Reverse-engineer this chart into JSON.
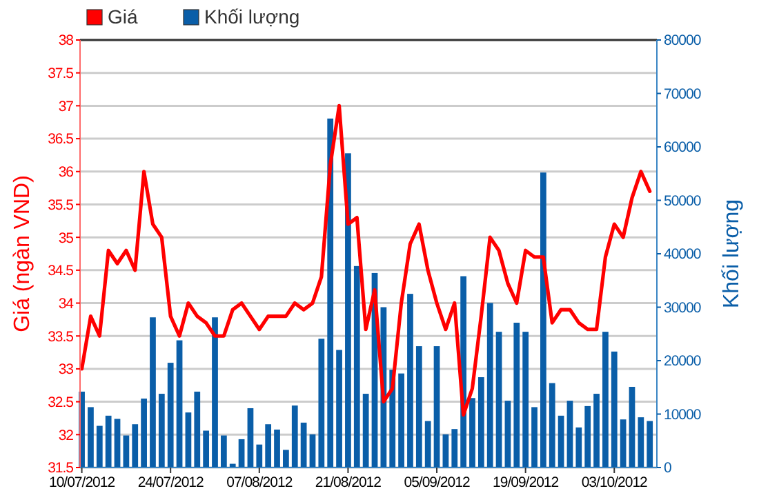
{
  "chart_data": {
    "type": "line",
    "ylabel": "Giá (ngàn VND)",
    "y2label": "Khối lượng",
    "categories": [
      "10/07/2012",
      null,
      null,
      null,
      null,
      null,
      null,
      null,
      null,
      null,
      "24/07/2012",
      null,
      null,
      null,
      null,
      null,
      null,
      null,
      null,
      null,
      "07/08/2012",
      null,
      null,
      null,
      null,
      null,
      null,
      null,
      null,
      null,
      "21/08/2012",
      null,
      null,
      null,
      null,
      null,
      null,
      null,
      null,
      null,
      "05/09/2012",
      null,
      null,
      null,
      null,
      null,
      null,
      null,
      null,
      null,
      "19/09/2012",
      null,
      null,
      null,
      null,
      null,
      null,
      null,
      null,
      null,
      "03/10/2012",
      null,
      null,
      null,
      null
    ],
    "series": [
      {
        "name": "Giá",
        "color": "#ff0000",
        "values": [
          33.0,
          33.8,
          33.5,
          34.8,
          34.6,
          34.8,
          34.5,
          36.0,
          35.2,
          35.0,
          33.8,
          33.5,
          34.0,
          33.8,
          33.7,
          33.5,
          33.5,
          33.9,
          34.0,
          33.8,
          33.6,
          33.8,
          33.8,
          33.8,
          34.0,
          33.9,
          34.0,
          34.4,
          36.1,
          37.0,
          35.2,
          35.3,
          33.6,
          34.2,
          32.5,
          32.7,
          34.0,
          34.9,
          35.2,
          34.5,
          34.0,
          33.6,
          34.0,
          32.3,
          32.7,
          33.8,
          35.0,
          34.8,
          34.3,
          34.0,
          34.8,
          34.7,
          34.7,
          33.7,
          33.9,
          33.9,
          33.7,
          33.6,
          33.6,
          34.7,
          35.2,
          35.0,
          35.6,
          36.0,
          35.7
        ]
      },
      {
        "name": "Khối lượng",
        "type": "bar",
        "axis": "y2",
        "color": "#0a5ea8",
        "values": [
          14200,
          11300,
          7800,
          9700,
          9100,
          6000,
          8100,
          12900,
          28100,
          13800,
          19600,
          23800,
          10300,
          14200,
          6900,
          28100,
          6000,
          700,
          5300,
          11100,
          4300,
          8100,
          7100,
          3300,
          11600,
          8400,
          6200,
          24100,
          65300,
          22000,
          58800,
          37700,
          13800,
          36400,
          30000,
          18300,
          17600,
          32500,
          22700,
          8700,
          22700,
          6200,
          7200,
          35800,
          13000,
          16900,
          30800,
          25400,
          12500,
          27100,
          25400,
          11300,
          55200,
          15800,
          9700,
          12500,
          7500,
          11500,
          13800,
          25400,
          21700,
          9000,
          15100,
          9400,
          8700
        ]
      }
    ],
    "ylim": [
      31.5,
      38
    ],
    "yticks": [
      {
        "value": 31.5,
        "label": "31.5"
      },
      {
        "value": 32,
        "label": "32"
      },
      {
        "value": 32.5,
        "label": "32.5"
      },
      {
        "value": 33,
        "label": "33"
      },
      {
        "value": 33.5,
        "label": "33.5"
      },
      {
        "value": 34,
        "label": "34"
      },
      {
        "value": 34.5,
        "label": "34.5"
      },
      {
        "value": 35,
        "label": "35"
      },
      {
        "value": 35.5,
        "label": "35.5"
      },
      {
        "value": 36,
        "label": "36"
      },
      {
        "value": 36.5,
        "label": "36.5"
      },
      {
        "value": 37,
        "label": "37"
      },
      {
        "value": 37.5,
        "label": "37.5"
      },
      {
        "value": 38,
        "label": "38"
      }
    ],
    "y2lim": [
      0,
      80000
    ],
    "y2ticks": [
      0,
      10000,
      20000,
      30000,
      40000,
      50000,
      60000,
      70000,
      80000
    ],
    "grid": "y",
    "legend": "top left"
  }
}
